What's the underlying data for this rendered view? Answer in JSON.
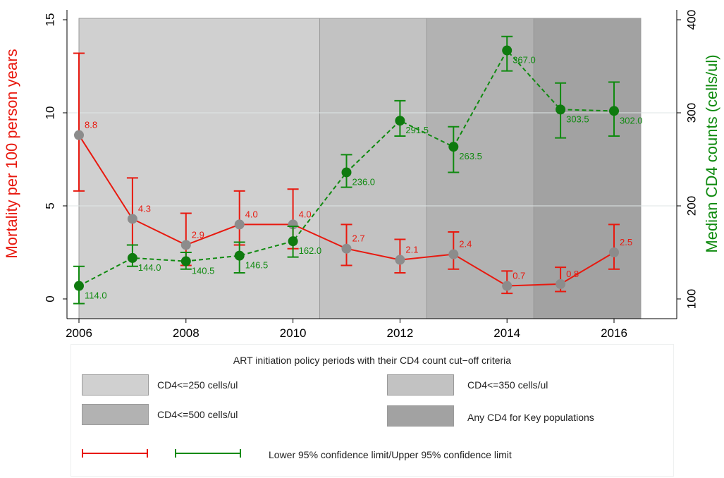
{
  "chart_data": {
    "type": "line",
    "x": [
      2006,
      2007,
      2008,
      2009,
      2010,
      2011,
      2012,
      2013,
      2014,
      2015,
      2016
    ],
    "xlim": [
      2006,
      2017
    ],
    "xticks": [
      "2006",
      "2008",
      "2010",
      "2012",
      "2014",
      "2016"
    ],
    "left_axis": {
      "label": "Mortality per 100 person years",
      "ylim": [
        0,
        15
      ],
      "ticks": [
        "0",
        "5",
        "10",
        "15"
      ],
      "color": "#e8190f"
    },
    "right_axis": {
      "label": "Median CD4 counts (cells/ul)",
      "ylim": [
        100,
        400
      ],
      "ticks": [
        "100",
        "200",
        "300",
        "400"
      ],
      "color": "#0f8a0f"
    },
    "series": [
      {
        "axis": "left",
        "color": "#e8190f",
        "line_style": "solid",
        "values": [
          8.8,
          4.3,
          2.9,
          4.0,
          4.0,
          2.7,
          2.1,
          2.4,
          0.7,
          0.8,
          2.5
        ],
        "labels": [
          "8.8",
          "4.3",
          "2.9",
          "4.0",
          "4.0",
          "2.7",
          "2.1",
          "2.4",
          "0.7",
          "0.8",
          "2.5"
        ],
        "ci_low": [
          5.8,
          2.9,
          1.8,
          2.9,
          2.7,
          1.8,
          1.4,
          1.6,
          0.3,
          0.4,
          1.6
        ],
        "ci_high": [
          13.2,
          6.5,
          4.6,
          5.8,
          5.9,
          4.0,
          3.2,
          3.6,
          1.5,
          1.7,
          4.0
        ]
      },
      {
        "axis": "right",
        "color": "#0f8a0f",
        "line_style": "dashed",
        "values": [
          114.0,
          144.0,
          140.5,
          146.5,
          162.0,
          236.0,
          291.5,
          263.5,
          367.0,
          303.5,
          302.0
        ],
        "labels": [
          "114.0",
          "144.0",
          "140.5",
          "146.5",
          "162.0",
          "236.0",
          "291.5",
          "263.5",
          "367.0",
          "303.5",
          "302.0"
        ],
        "ci_low": [
          95,
          135,
          132,
          128,
          145,
          220,
          275,
          236,
          345,
          273,
          275
        ],
        "ci_high": [
          135,
          158,
          150,
          161,
          178,
          255,
          313,
          285,
          382,
          332,
          333
        ]
      }
    ],
    "periods": [
      {
        "x0": 2006,
        "x1": 2010.5,
        "color": "#d0d0d0"
      },
      {
        "x0": 2010.5,
        "x1": 2012.5,
        "color": "#c2c2c2"
      },
      {
        "x0": 2012.5,
        "x1": 2014.5,
        "color": "#b2b2b2"
      },
      {
        "x0": 2014.5,
        "x1": 2016.5,
        "color": "#a2a2a2"
      }
    ],
    "grid": true
  },
  "legend": {
    "title": "ART initiation policy periods with their CD4 count cut−off criteria",
    "items": [
      {
        "label": "CD4<=250 cells/ul",
        "color": "#d0d0d0"
      },
      {
        "label": "CD4<=350 cells/ul",
        "color": "#c2c2c2"
      },
      {
        "label": "CD4<=500 cells/ul",
        "color": "#b2b2b2"
      },
      {
        "label": "Any CD4 for Key populations",
        "color": "#a2a2a2"
      }
    ],
    "ci_label": "Lower 95% confidence limit/Upper 95% confidence limit"
  }
}
